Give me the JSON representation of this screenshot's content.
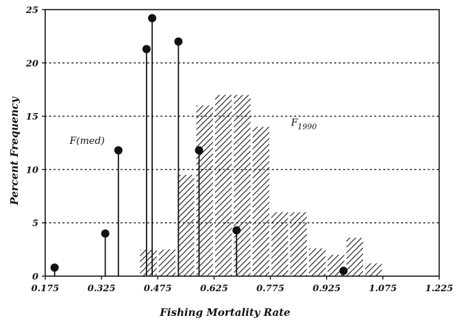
{
  "chart_data": {
    "type": "bar",
    "xlabel": "Fishing Mortality Rate",
    "ylabel": "Percent Frequency",
    "xlim": [
      0.175,
      1.225
    ],
    "ylim": [
      0,
      25
    ],
    "x_ticks": [
      0.175,
      0.325,
      0.475,
      0.625,
      0.775,
      0.925,
      1.075,
      1.225
    ],
    "x_tick_labels": [
      "0.175",
      "0.325",
      "0.475",
      "0.625",
      "0.775",
      "0.925",
      "1.075",
      "1.225"
    ],
    "y_ticks": [
      0,
      5,
      10,
      15,
      20,
      25
    ],
    "y_tick_labels": [
      "0",
      "5",
      "10",
      "15",
      "20",
      "25"
    ],
    "y_gridlines": [
      5,
      10,
      15,
      20
    ],
    "grid": "dotted horizontal",
    "series": [
      {
        "style": "hatched-bar",
        "bin_width": 0.05,
        "x": [
          0.45,
          0.5,
          0.55,
          0.6,
          0.65,
          0.7,
          0.75,
          0.8,
          0.85,
          0.9,
          0.95,
          1.0,
          1.05
        ],
        "values": [
          2.5,
          2.5,
          9.5,
          16,
          17,
          17,
          14,
          6,
          6,
          2.6,
          2,
          3.6,
          1.2
        ]
      },
      {
        "style": "lollipop",
        "x": [
          0.2,
          0.335,
          0.37,
          0.445,
          0.46,
          0.53,
          0.585,
          0.685,
          0.97
        ],
        "values": [
          0.8,
          4,
          11.8,
          21.3,
          24.2,
          22,
          11.8,
          4.3,
          0.5
        ]
      }
    ],
    "annotations": [
      {
        "text": "F(med)",
        "x": 0.24,
        "y": 12.4
      },
      {
        "text": "F",
        "subscript": "1990",
        "x": 0.83,
        "y": 14.1
      }
    ]
  }
}
